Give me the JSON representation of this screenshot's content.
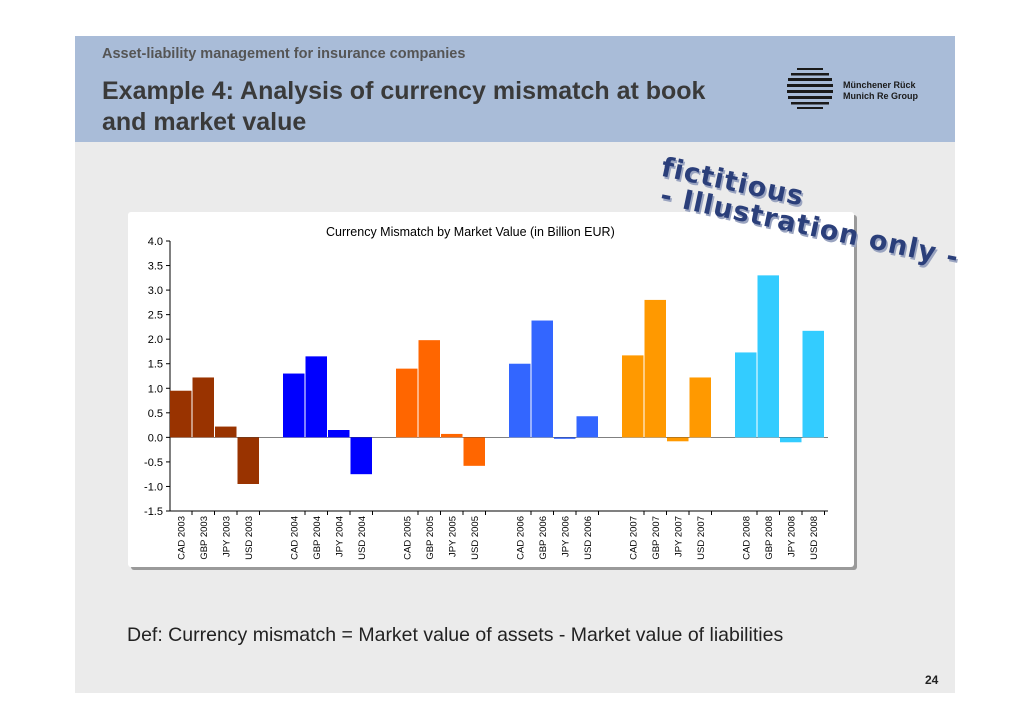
{
  "header": {
    "subtitle": "Asset-liability management for insurance companies",
    "title": "Example 4: Analysis of currency mismatch at book and market value",
    "logo_line1": "Münchener Rück",
    "logo_line2": "Munich Re Group"
  },
  "stamp": {
    "line1": "fictitious",
    "line2": "- Illustration only -",
    "color": "#2b3f7a"
  },
  "chart_data": {
    "type": "bar",
    "title": "Currency Mismatch by Market Value (in Billion EUR)",
    "ylim": [
      -1.5,
      4.0
    ],
    "yticks": [
      "4.0",
      "3.5",
      "3.0",
      "2.5",
      "2.0",
      "1.5",
      "1.0",
      "0.5",
      "0.0",
      "-0.5",
      "-1.0",
      "-1.5"
    ],
    "grid": false,
    "categories": [
      "CAD 2003",
      "GBP 2003",
      "JPY 2003",
      "USD 2003",
      "CAD 2004",
      "GBP 2004",
      "JPY 2004",
      "USD 2004",
      "CAD 2005",
      "GBP 2005",
      "JPY 2005",
      "USD 2005",
      "CAD 2006",
      "GBP 2006",
      "JPY 2006",
      "USD 2006",
      "CAD 2007",
      "GBP 2007",
      "JPY 2007",
      "USD 2007",
      "CAD 2008",
      "GBP 2008",
      "JPY 2008",
      "USD 2008"
    ],
    "values": [
      0.95,
      1.22,
      0.22,
      -0.95,
      1.3,
      1.65,
      0.15,
      -0.75,
      1.4,
      1.98,
      0.07,
      -0.58,
      1.5,
      2.38,
      -0.03,
      0.43,
      1.67,
      2.8,
      -0.08,
      1.22,
      1.73,
      3.3,
      -0.1,
      2.17
    ],
    "group_colors": [
      "#993300",
      "#0000ff",
      "#ff6600",
      "#3366ff",
      "#ff9900",
      "#33ccff"
    ]
  },
  "footer": {
    "definition": "Def: Currency mismatch = Market value of assets - Market value of liabilities",
    "page_number": "24"
  }
}
